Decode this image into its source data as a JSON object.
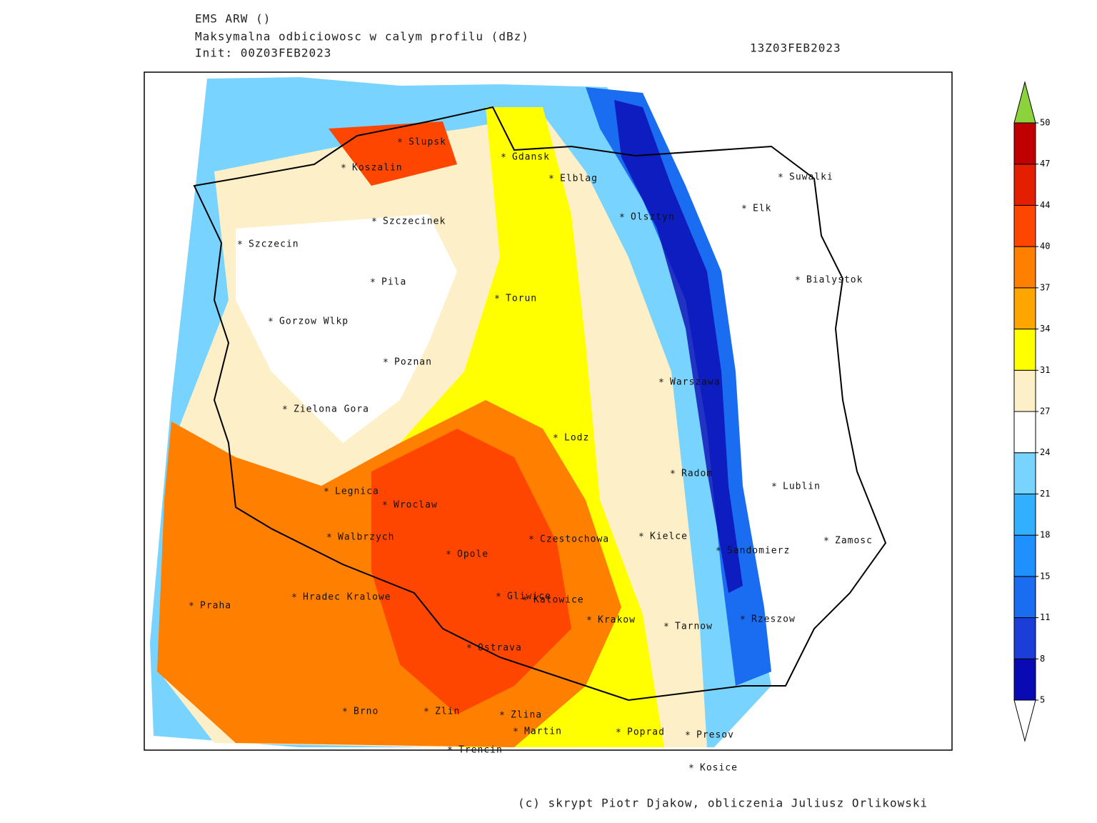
{
  "header": {
    "model": "EMS ARW ()",
    "title": "Maksymalna odbiciowosc w calym profilu (dBz)",
    "init": "Init: 00Z03FEB2023",
    "valid": "13Z03FEB2023"
  },
  "cities": [
    "Slupsk",
    "Koszalin",
    "Gdansk",
    "Elblag",
    "Suwalki",
    "Elk",
    "Szczecinek",
    "Olsztyn",
    "Szczecin",
    "Pila",
    "Bialystok",
    "Torun",
    "Gorzow Wlkp",
    "Poznan",
    "Warszawa",
    "Zielona Gora",
    "Lodz",
    "Radom",
    "Lublin",
    "Legnica",
    "Wroclaw",
    "Walbrzych",
    "Czestochowa",
    "Kielce",
    "Zamosc",
    "Sandomierz",
    "Opole",
    "Praha",
    "Hradec Kralowe",
    "Gliwice",
    "Katowice",
    "Krakow",
    "Rzeszow",
    "Tarnow",
    "Ostrava",
    "Brno",
    "Zlin",
    "Zlina",
    "Martin",
    "Poprad",
    "Presov",
    "Trencin",
    "Kosice"
  ],
  "colorbar": {
    "ticks": [
      5,
      8,
      11,
      15,
      18,
      21,
      24,
      27,
      31,
      34,
      37,
      40,
      44,
      47,
      50
    ],
    "colors": [
      "#0a0ab4",
      "#1c3ed8",
      "#1a6cf0",
      "#1e90ff",
      "#32b0ff",
      "#78d4ff",
      "#ffffff",
      "#fdf0c8",
      "#ffff00",
      "#ffa500",
      "#ff7f00",
      "#ff4600",
      "#e41e00",
      "#c00000"
    ],
    "over_color": "#8cd23c",
    "under_color": "#ffffff"
  },
  "footer": "(c) skrypt Piotr Djakow, obliczenia Juliusz Orlikowski"
}
